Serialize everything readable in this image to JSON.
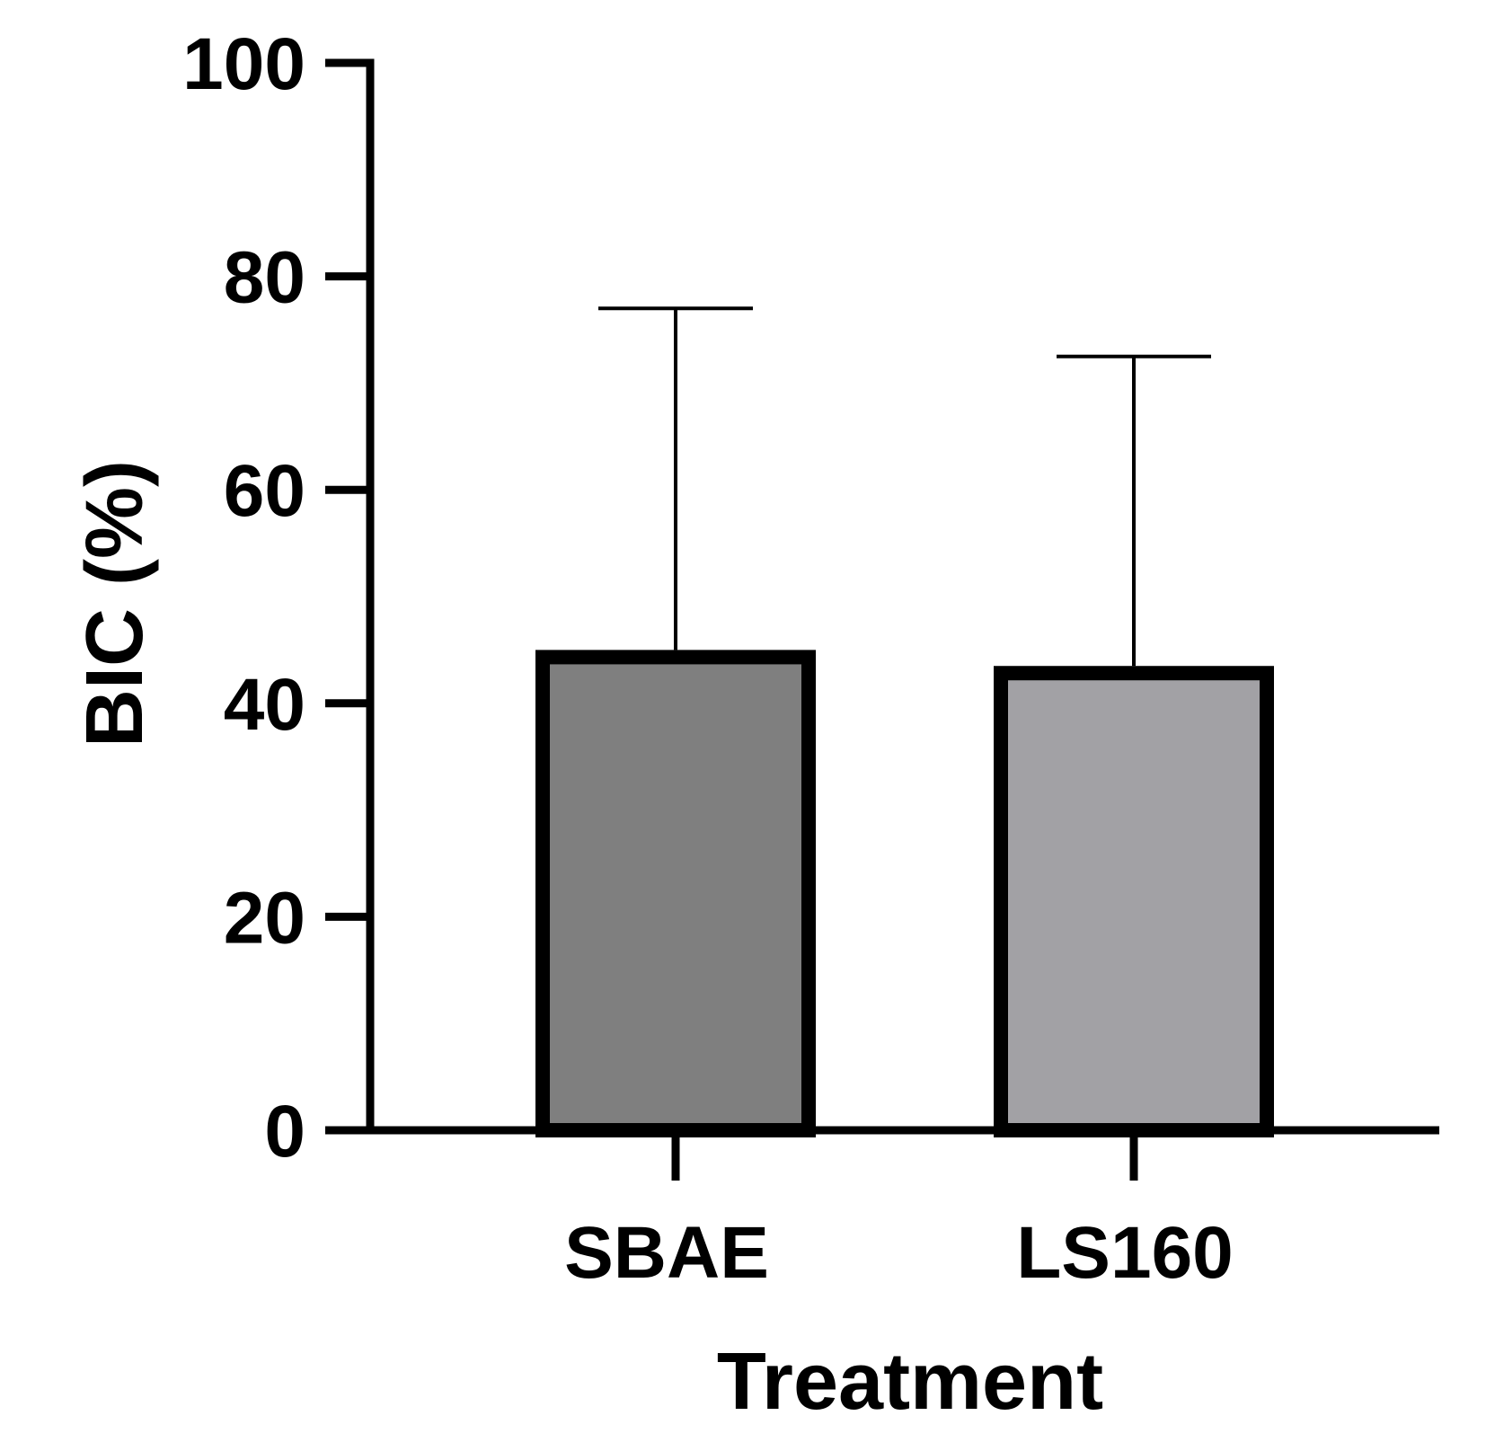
{
  "chart_data": {
    "type": "bar",
    "title": "",
    "xlabel": "Treatment",
    "ylabel": "BIC (%)",
    "categories": [
      "SBAE",
      "LS160"
    ],
    "values": [
      45,
      43.5
    ],
    "error_upper": [
      77,
      72.5
    ],
    "bar_colors": [
      "#7f7f7f",
      "#a2a1a5"
    ],
    "outline_color": "#000000",
    "ylim": [
      0,
      100
    ],
    "yticks": [
      0,
      20,
      40,
      60,
      80,
      100
    ],
    "ytick_labels": [
      "0",
      "20",
      "40",
      "60",
      "80",
      "100"
    ],
    "grid": false,
    "legend": "none"
  }
}
